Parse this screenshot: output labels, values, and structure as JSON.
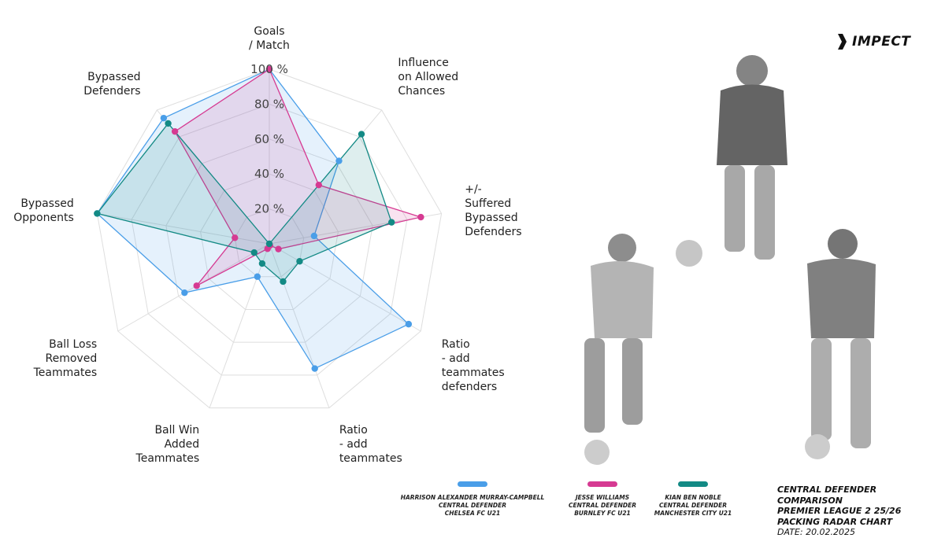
{
  "brand": {
    "name": "IMPECT"
  },
  "chart_data": {
    "type": "radar",
    "axes": [
      "Goals\n/ Match",
      "Influence\non Allowed\nChances",
      "+/-\nSuffered\nBypassed\nDefenders",
      "Ratio\n- add\nteammates\ndefenders",
      "Ratio\n- add\nteammates",
      "Ball Win\nAdded\nTeammates",
      "Ball Loss\nRemoved\nTeammates",
      "Bypassed\nOpponents",
      "Bypassed\nDefenders"
    ],
    "radial_ticks": [
      "20 %",
      "40 %",
      "60 %",
      "80 %",
      "100 %"
    ],
    "range": [
      0,
      100
    ],
    "grid": true,
    "series": [
      {
        "name": "HARRISON ALEXANDER MURRAY-CAMPBELL",
        "role": "CENTRAL DEFENDER",
        "team": "CHELSEA FC U21",
        "color": "#4a9ee8",
        "values": [
          100,
          62,
          26,
          92,
          76,
          20,
          56,
          100,
          94
        ]
      },
      {
        "name": "JESSE WILLIAMS",
        "role": "CENTRAL DEFENDER",
        "team": "BURNLEY FC U21",
        "color": "#d63a92",
        "values": [
          100,
          44,
          88,
          6,
          1,
          3,
          48,
          20,
          84
        ]
      },
      {
        "name": "KIAN BEN NOBLE",
        "role": "CENTRAL DEFENDER",
        "team": "MANCHESTER CITY U21",
        "color": "#138a85",
        "values": [
          0,
          82,
          71,
          20,
          23,
          12,
          10,
          100,
          90
        ]
      }
    ]
  },
  "legend": [
    {
      "name": "HARRISON ALEXANDER MURRAY-CAMPBELL",
      "role": "CENTRAL DEFENDER",
      "team": "CHELSEA FC U21",
      "color": "#4a9ee8"
    },
    {
      "name": "JESSE WILLIAMS",
      "role": "CENTRAL DEFENDER",
      "team": "BURNLEY FC U21",
      "color": "#d63a92"
    },
    {
      "name": "KIAN BEN NOBLE",
      "role": "CENTRAL DEFENDER",
      "team": "MANCHESTER CITY U21",
      "color": "#138a85"
    }
  ],
  "title_block": {
    "line1": "CENTRAL DEFENDER COMPARISON",
    "line2": "PREMIER LEAGUE 2 25/26",
    "line3": "PACKING RADAR CHART",
    "date": "DATE: 20.02.2025"
  },
  "players_image": {
    "description": "players-cutout"
  }
}
